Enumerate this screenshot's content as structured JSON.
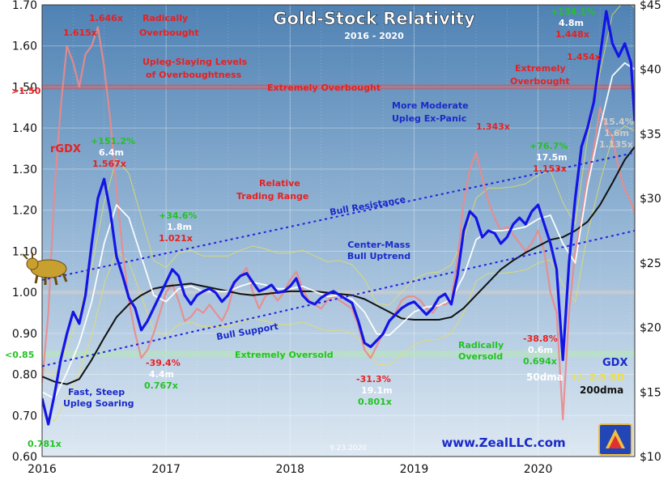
{
  "chart_data": {
    "type": "line",
    "title": "Gold-Stock Relativity",
    "subtitle": "2016 - 2020",
    "date_stamp": "9.23.2020",
    "watermark": "www.ZealLLC.com",
    "x_ticks": [
      "2016",
      "2017",
      "2018",
      "2019",
      "2020"
    ],
    "x_range": [
      2016.0,
      2020.78
    ],
    "y_left_ticks": [
      "0.60",
      "0.70",
      "0.80",
      "0.90",
      "1.00",
      "1.10",
      "1.20",
      "1.30",
      "1.40",
      "1.50",
      "1.60",
      "1.70"
    ],
    "y_left_range": [
      0.6,
      1.7
    ],
    "y_right_ticks": [
      "$10",
      "$15",
      "$20",
      "$25",
      "$30",
      "$35",
      "$40",
      "$45"
    ],
    "y_right_range": [
      10,
      45
    ],
    "grid": true,
    "colors": {
      "background_top": "#5a8ab8",
      "background_bottom": "#d4e2ef",
      "rgdx": "#ec8a8a",
      "gdx": "#1414e6",
      "dma50": "#ffffff",
      "dma200": "#111111",
      "band": "#e8e05a",
      "trend": "#2222dd",
      "overbought_line": "#d85050",
      "oversold_band": "#b8e8b8",
      "text_red": "#e82020",
      "text_green": "#22c322",
      "text_blue": "#1a2ac8"
    },
    "reference_lines": {
      "overbought": 1.5,
      "overbought_label": ">1.50",
      "oversold": 0.85,
      "oversold_label": "<0.85",
      "overbought_zone_label": "Extremely Overbought",
      "oversold_zone_label": "Extremely Oversold"
    },
    "trend_channel": {
      "resistance_label": "Bull Resistance",
      "support_label": "Bull Support",
      "center_label": "Center-Mass Bull Uptrend",
      "resistance": [
        [
          2016.0,
          1.03
        ],
        [
          2020.78,
          1.34
        ]
      ],
      "support": [
        [
          2016.0,
          0.82
        ],
        [
          2020.78,
          1.15
        ]
      ]
    },
    "series": [
      {
        "name": "rGDX",
        "axis": "left",
        "x": [
          2016.0,
          2016.05,
          2016.1,
          2016.15,
          2016.2,
          2016.25,
          2016.3,
          2016.35,
          2016.4,
          2016.45,
          2016.5,
          2016.55,
          2016.6,
          2016.65,
          2016.7,
          2016.75,
          2016.8,
          2016.85,
          2016.9,
          2016.95,
          2017.0,
          2017.05,
          2017.1,
          2017.15,
          2017.2,
          2017.25,
          2017.3,
          2017.35,
          2017.4,
          2017.45,
          2017.5,
          2017.55,
          2017.6,
          2017.65,
          2017.7,
          2017.75,
          2017.8,
          2017.85,
          2017.9,
          2017.95,
          2018.0,
          2018.05,
          2018.1,
          2018.15,
          2018.2,
          2018.25,
          2018.3,
          2018.35,
          2018.4,
          2018.45,
          2018.5,
          2018.55,
          2018.6,
          2018.65,
          2018.7,
          2018.75,
          2018.8,
          2018.85,
          2018.9,
          2018.95,
          2019.0,
          2019.05,
          2019.1,
          2019.15,
          2019.2,
          2019.25,
          2019.3,
          2019.35,
          2019.4,
          2019.45,
          2019.5,
          2019.55,
          2019.6,
          2019.65,
          2019.7,
          2019.75,
          2019.8,
          2019.85,
          2019.9,
          2019.95,
          2020.0,
          2020.05,
          2020.1,
          2020.15,
          2020.2,
          2020.25,
          2020.3,
          2020.35,
          2020.4,
          2020.45,
          2020.5,
          2020.55,
          2020.6,
          2020.65,
          2020.7,
          2020.75,
          2020.78
        ],
        "values": [
          0.78,
          0.95,
          1.25,
          1.45,
          1.6,
          1.56,
          1.5,
          1.58,
          1.6,
          1.646,
          1.55,
          1.42,
          1.25,
          1.1,
          0.98,
          0.9,
          0.84,
          0.86,
          0.9,
          0.95,
          1.0,
          1.02,
          0.98,
          0.93,
          0.94,
          0.96,
          0.95,
          0.97,
          0.95,
          0.93,
          0.96,
          1.02,
          1.04,
          1.06,
          1.0,
          0.96,
          0.99,
          1.0,
          0.98,
          1.0,
          1.03,
          1.05,
          1.01,
          0.98,
          0.97,
          0.96,
          0.98,
          0.99,
          0.98,
          0.97,
          0.96,
          0.92,
          0.86,
          0.84,
          0.87,
          0.9,
          0.93,
          0.95,
          0.98,
          0.99,
          0.99,
          0.98,
          0.96,
          0.95,
          0.97,
          0.97,
          0.98,
          1.08,
          1.22,
          1.3,
          1.34,
          1.28,
          1.22,
          1.18,
          1.15,
          1.16,
          1.14,
          1.12,
          1.1,
          1.12,
          1.15,
          1.1,
          1.0,
          0.95,
          0.69,
          0.95,
          1.1,
          1.18,
          1.28,
          1.35,
          1.45,
          1.4,
          1.38,
          1.3,
          1.25,
          1.22,
          1.19
        ]
      },
      {
        "name": "GDX",
        "axis": "right",
        "x": [
          2016.0,
          2016.05,
          2016.1,
          2016.15,
          2016.2,
          2016.25,
          2016.3,
          2016.35,
          2016.4,
          2016.45,
          2016.5,
          2016.55,
          2016.6,
          2016.65,
          2016.7,
          2016.75,
          2016.8,
          2016.85,
          2016.9,
          2016.95,
          2017.0,
          2017.05,
          2017.1,
          2017.15,
          2017.2,
          2017.25,
          2017.3,
          2017.35,
          2017.4,
          2017.45,
          2017.5,
          2017.55,
          2017.6,
          2017.65,
          2017.7,
          2017.75,
          2017.8,
          2017.85,
          2017.9,
          2017.95,
          2018.0,
          2018.05,
          2018.1,
          2018.15,
          2018.2,
          2018.25,
          2018.3,
          2018.35,
          2018.4,
          2018.45,
          2018.5,
          2018.55,
          2018.6,
          2018.65,
          2018.7,
          2018.75,
          2018.8,
          2018.85,
          2018.9,
          2018.95,
          2019.0,
          2019.05,
          2019.1,
          2019.15,
          2019.2,
          2019.25,
          2019.3,
          2019.35,
          2019.4,
          2019.45,
          2019.5,
          2019.55,
          2019.6,
          2019.65,
          2019.7,
          2019.75,
          2019.8,
          2019.85,
          2019.9,
          2019.95,
          2020.0,
          2020.05,
          2020.1,
          2020.15,
          2020.2,
          2020.25,
          2020.3,
          2020.35,
          2020.4,
          2020.45,
          2020.5,
          2020.55,
          2020.6,
          2020.65,
          2020.7,
          2020.75,
          2020.78
        ],
        "values": [
          14.5,
          12.5,
          14.8,
          17.5,
          19.5,
          21.2,
          20.3,
          22.5,
          26.5,
          30.0,
          31.5,
          29.0,
          25.5,
          24.0,
          22.3,
          21.5,
          19.8,
          20.5,
          21.5,
          22.5,
          23.5,
          24.5,
          24.0,
          22.5,
          21.8,
          22.5,
          22.8,
          23.0,
          22.7,
          22.0,
          22.5,
          23.5,
          24.0,
          24.2,
          23.5,
          22.8,
          23.0,
          23.3,
          22.7,
          22.8,
          23.2,
          23.8,
          22.5,
          22.0,
          21.8,
          22.3,
          22.6,
          22.8,
          22.5,
          22.2,
          21.9,
          20.5,
          18.8,
          18.5,
          19.0,
          19.5,
          20.5,
          21.0,
          21.5,
          21.8,
          22.0,
          21.5,
          21.0,
          21.5,
          22.3,
          22.6,
          21.8,
          24.0,
          27.5,
          29.0,
          28.5,
          27.0,
          27.5,
          27.3,
          26.5,
          27.0,
          28.0,
          28.5,
          28.0,
          29.0,
          29.5,
          28.0,
          26.5,
          24.5,
          17.5,
          25.0,
          30.0,
          34.0,
          35.5,
          37.5,
          41.0,
          44.5,
          42.0,
          41.0,
          42.0,
          40.5,
          36.0
        ]
      },
      {
        "name": "50dma",
        "axis": "right",
        "x": [
          2016.0,
          2016.1,
          2016.2,
          2016.3,
          2016.4,
          2016.5,
          2016.6,
          2016.7,
          2016.8,
          2016.9,
          2017.0,
          2017.1,
          2017.2,
          2017.3,
          2017.4,
          2017.5,
          2017.6,
          2017.7,
          2017.8,
          2017.9,
          2018.0,
          2018.1,
          2018.2,
          2018.3,
          2018.4,
          2018.5,
          2018.6,
          2018.7,
          2018.8,
          2018.9,
          2019.0,
          2019.1,
          2019.2,
          2019.3,
          2019.4,
          2019.5,
          2019.6,
          2019.7,
          2019.8,
          2019.9,
          2020.0,
          2020.1,
          2020.2,
          2020.3,
          2020.4,
          2020.5,
          2020.6,
          2020.7,
          2020.78
        ],
        "values": [
          15.0,
          14.5,
          16.5,
          18.8,
          22.0,
          26.5,
          29.5,
          28.5,
          25.5,
          22.5,
          22.0,
          23.0,
          23.2,
          22.8,
          22.8,
          22.8,
          23.2,
          23.5,
          23.3,
          23.0,
          23.0,
          23.2,
          22.8,
          22.4,
          22.5,
          22.2,
          21.2,
          19.5,
          19.4,
          20.3,
          21.2,
          21.6,
          21.7,
          22.2,
          24.0,
          26.8,
          27.5,
          27.5,
          27.6,
          27.8,
          28.4,
          28.7,
          26.5,
          25.0,
          31.0,
          35.5,
          39.5,
          40.5,
          40.0
        ]
      },
      {
        "name": "200dma",
        "axis": "right",
        "x": [
          2016.0,
          2016.1,
          2016.2,
          2016.3,
          2016.4,
          2016.5,
          2016.6,
          2016.7,
          2016.8,
          2016.9,
          2017.0,
          2017.1,
          2017.2,
          2017.3,
          2017.4,
          2017.5,
          2017.6,
          2017.7,
          2017.8,
          2017.9,
          2018.0,
          2018.1,
          2018.2,
          2018.3,
          2018.4,
          2018.5,
          2018.6,
          2018.7,
          2018.8,
          2018.9,
          2019.0,
          2019.1,
          2019.2,
          2019.3,
          2019.4,
          2019.5,
          2019.6,
          2019.7,
          2019.8,
          2019.9,
          2020.0,
          2020.1,
          2020.2,
          2020.3,
          2020.4,
          2020.5,
          2020.6,
          2020.7,
          2020.78
        ],
        "values": [
          16.2,
          15.8,
          15.6,
          16.0,
          17.5,
          19.2,
          20.8,
          21.8,
          22.5,
          23.0,
          23.2,
          23.3,
          23.4,
          23.2,
          23.0,
          22.8,
          22.6,
          22.5,
          22.6,
          22.7,
          22.8,
          22.8,
          22.8,
          22.7,
          22.6,
          22.5,
          22.2,
          21.7,
          21.2,
          20.7,
          20.6,
          20.6,
          20.6,
          20.8,
          21.5,
          22.5,
          23.5,
          24.5,
          25.2,
          25.8,
          26.3,
          26.8,
          27.0,
          27.5,
          28.2,
          29.5,
          31.2,
          33.0,
          34.0
        ]
      }
    ],
    "annotations": [
      {
        "text": "1.646x",
        "color": "red"
      },
      {
        "text": "1.615x",
        "color": "red"
      },
      {
        "text": "Radically",
        "color": "red"
      },
      {
        "text": "Overbought",
        "color": "red"
      },
      {
        "text": "Upleg-Slaying Levels",
        "color": "red"
      },
      {
        "text": "of Overboughtness",
        "color": "red"
      },
      {
        "text": "rGDX",
        "color": "red"
      },
      {
        "text": "+151.2%",
        "color": "green"
      },
      {
        "text": "6.4m",
        "color": "white"
      },
      {
        "text": "1.567x",
        "color": "red"
      },
      {
        "text": "+34.6%",
        "color": "green"
      },
      {
        "text": "1.8m",
        "color": "white"
      },
      {
        "text": "1.021x",
        "color": "red"
      },
      {
        "text": "Relative",
        "color": "red"
      },
      {
        "text": "Trading Range",
        "color": "red"
      },
      {
        "text": "-39.4%",
        "color": "red"
      },
      {
        "text": "4.4m",
        "color": "white"
      },
      {
        "text": "0.767x",
        "color": "green"
      },
      {
        "text": "Fast, Steep",
        "color": "blue"
      },
      {
        "text": "Upleg Soaring",
        "color": "blue"
      },
      {
        "text": "0.781x",
        "color": "green"
      },
      {
        "text": "-31.3%",
        "color": "red"
      },
      {
        "text": "19.1m",
        "color": "white"
      },
      {
        "text": "0.801x",
        "color": "green"
      },
      {
        "text": "1.343x",
        "color": "red"
      },
      {
        "text": "More Moderate",
        "color": "blue"
      },
      {
        "text": "Upleg Ex-Panic",
        "color": "blue"
      },
      {
        "text": "+76.7%",
        "color": "green"
      },
      {
        "text": "17.5m",
        "color": "white"
      },
      {
        "text": "1.153x",
        "color": "red"
      },
      {
        "text": "Radically",
        "color": "green"
      },
      {
        "text": "Oversold",
        "color": "green"
      },
      {
        "text": "-38.8%",
        "color": "red"
      },
      {
        "text": "0.6m",
        "color": "white"
      },
      {
        "text": "0.694x",
        "color": "green"
      },
      {
        "text": "+134.1%",
        "color": "green"
      },
      {
        "text": "4.8m",
        "color": "white"
      },
      {
        "text": "1.448x",
        "color": "red"
      },
      {
        "text": "1.454x",
        "color": "red"
      },
      {
        "text": "Extremely",
        "color": "red"
      },
      {
        "text": "Overbought",
        "color": "red"
      },
      {
        "text": "-15.4%",
        "color": "gray"
      },
      {
        "text": "1.6m",
        "color": "gray"
      },
      {
        "text": "1.135x",
        "color": "gray"
      },
      {
        "text": "GDX",
        "color": "blue"
      },
      {
        "text": "50dma",
        "color": "white"
      },
      {
        "text": "+/- 2.5 SD",
        "color": "yellow"
      },
      {
        "text": "200dma",
        "color": "black"
      }
    ]
  }
}
